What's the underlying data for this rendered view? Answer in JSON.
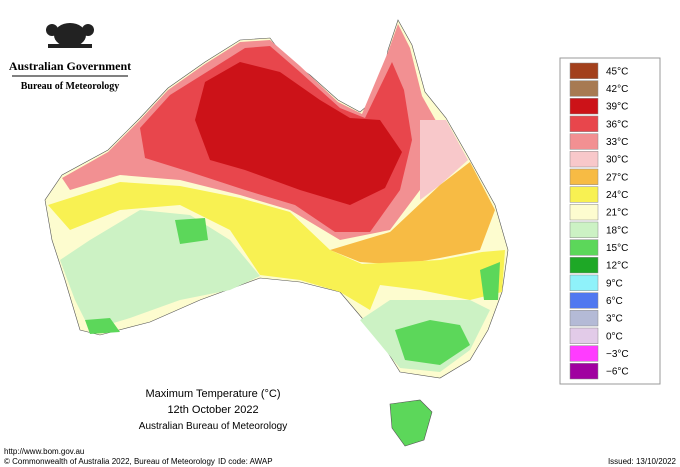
{
  "header": {
    "government": "Australian Government",
    "agency": "Bureau of Meteorology"
  },
  "caption": {
    "title": "Maximum Temperature (°C)",
    "date": "12th October 2022",
    "source": "Australian Bureau of Meteorology"
  },
  "footer": {
    "url": "http://www.bom.gov.au",
    "copyright": "© Commonwealth of Australia 2022, Bureau of Meteorology",
    "id_code": "ID code: AWAP",
    "issued": "Issued: 13/10/2022"
  },
  "legend": [
    {
      "label": "45°C",
      "color": "#a3401c"
    },
    {
      "label": "42°C",
      "color": "#a77a52"
    },
    {
      "label": "39°C",
      "color": "#cc1218"
    },
    {
      "label": "36°C",
      "color": "#e8464c"
    },
    {
      "label": "33°C",
      "color": "#f29092"
    },
    {
      "label": "30°C",
      "color": "#f8c8ca"
    },
    {
      "label": "27°C",
      "color": "#f7bb44"
    },
    {
      "label": "24°C",
      "color": "#f8f152"
    },
    {
      "label": "21°C",
      "color": "#fdfccf"
    },
    {
      "label": "18°C",
      "color": "#ccf2c4"
    },
    {
      "label": "15°C",
      "color": "#5cd75a"
    },
    {
      "label": "12°C",
      "color": "#1ea826"
    },
    {
      "label": "9°C",
      "color": "#8ff2fa"
    },
    {
      "label": "6°C",
      "color": "#5078f0"
    },
    {
      "label": "3°C",
      "color": "#b4bad6"
    },
    {
      "label": "0°C",
      "color": "#e2cbe8"
    },
    {
      "label": "−3°C",
      "color": "#ff3cff"
    },
    {
      "label": "−6°C",
      "color": "#a000a0"
    }
  ]
}
